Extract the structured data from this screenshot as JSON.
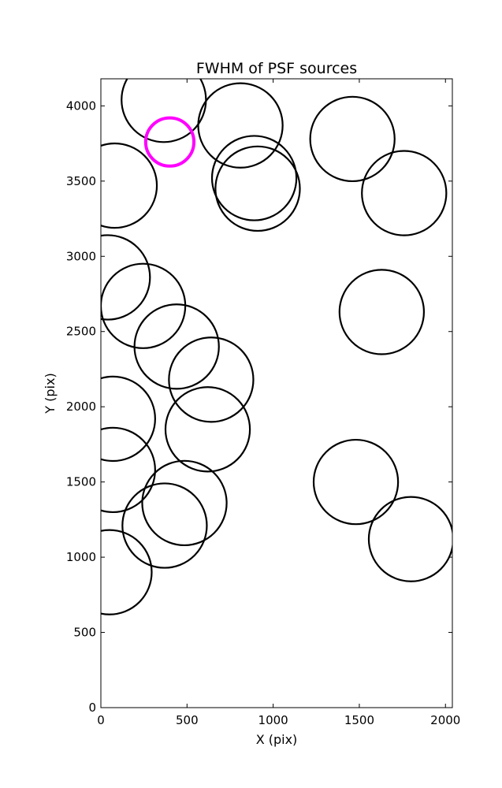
{
  "chart_data": {
    "type": "scatter",
    "title": "FWHM of PSF sources",
    "xlabel": "X (pix)",
    "ylabel": "Y (pix)",
    "xlim": [
      0,
      2040
    ],
    "ylim": [
      0,
      4180
    ],
    "x_ticks": [
      0,
      500,
      1000,
      1500,
      2000
    ],
    "y_ticks": [
      0,
      500,
      1000,
      1500,
      2000,
      2500,
      3000,
      3500,
      4000
    ],
    "grid": false,
    "colors": {
      "default": "#000000",
      "highlight": "#ff00ff"
    },
    "circles": [
      {
        "x": 365,
        "y": 4040,
        "r": 245,
        "highlight": false
      },
      {
        "x": 810,
        "y": 3870,
        "r": 245,
        "highlight": false
      },
      {
        "x": 1460,
        "y": 3780,
        "r": 245,
        "highlight": false
      },
      {
        "x": 80,
        "y": 3470,
        "r": 245,
        "highlight": false
      },
      {
        "x": 890,
        "y": 3520,
        "r": 245,
        "highlight": false
      },
      {
        "x": 910,
        "y": 3450,
        "r": 245,
        "highlight": false
      },
      {
        "x": 1760,
        "y": 3420,
        "r": 245,
        "highlight": false
      },
      {
        "x": 40,
        "y": 2860,
        "r": 245,
        "highlight": false
      },
      {
        "x": 245,
        "y": 2670,
        "r": 245,
        "highlight": false
      },
      {
        "x": 1630,
        "y": 2630,
        "r": 245,
        "highlight": false
      },
      {
        "x": 440,
        "y": 2400,
        "r": 245,
        "highlight": false
      },
      {
        "x": 640,
        "y": 2180,
        "r": 245,
        "highlight": false
      },
      {
        "x": 70,
        "y": 1920,
        "r": 245,
        "highlight": false
      },
      {
        "x": 620,
        "y": 1850,
        "r": 245,
        "highlight": false
      },
      {
        "x": 70,
        "y": 1580,
        "r": 245,
        "highlight": false
      },
      {
        "x": 1480,
        "y": 1500,
        "r": 245,
        "highlight": false
      },
      {
        "x": 485,
        "y": 1360,
        "r": 245,
        "highlight": false
      },
      {
        "x": 370,
        "y": 1210,
        "r": 245,
        "highlight": false
      },
      {
        "x": 1800,
        "y": 1120,
        "r": 245,
        "highlight": false
      },
      {
        "x": 50,
        "y": 900,
        "r": 245,
        "highlight": false
      },
      {
        "x": 400,
        "y": 3760,
        "r": 140,
        "highlight": true
      }
    ]
  }
}
